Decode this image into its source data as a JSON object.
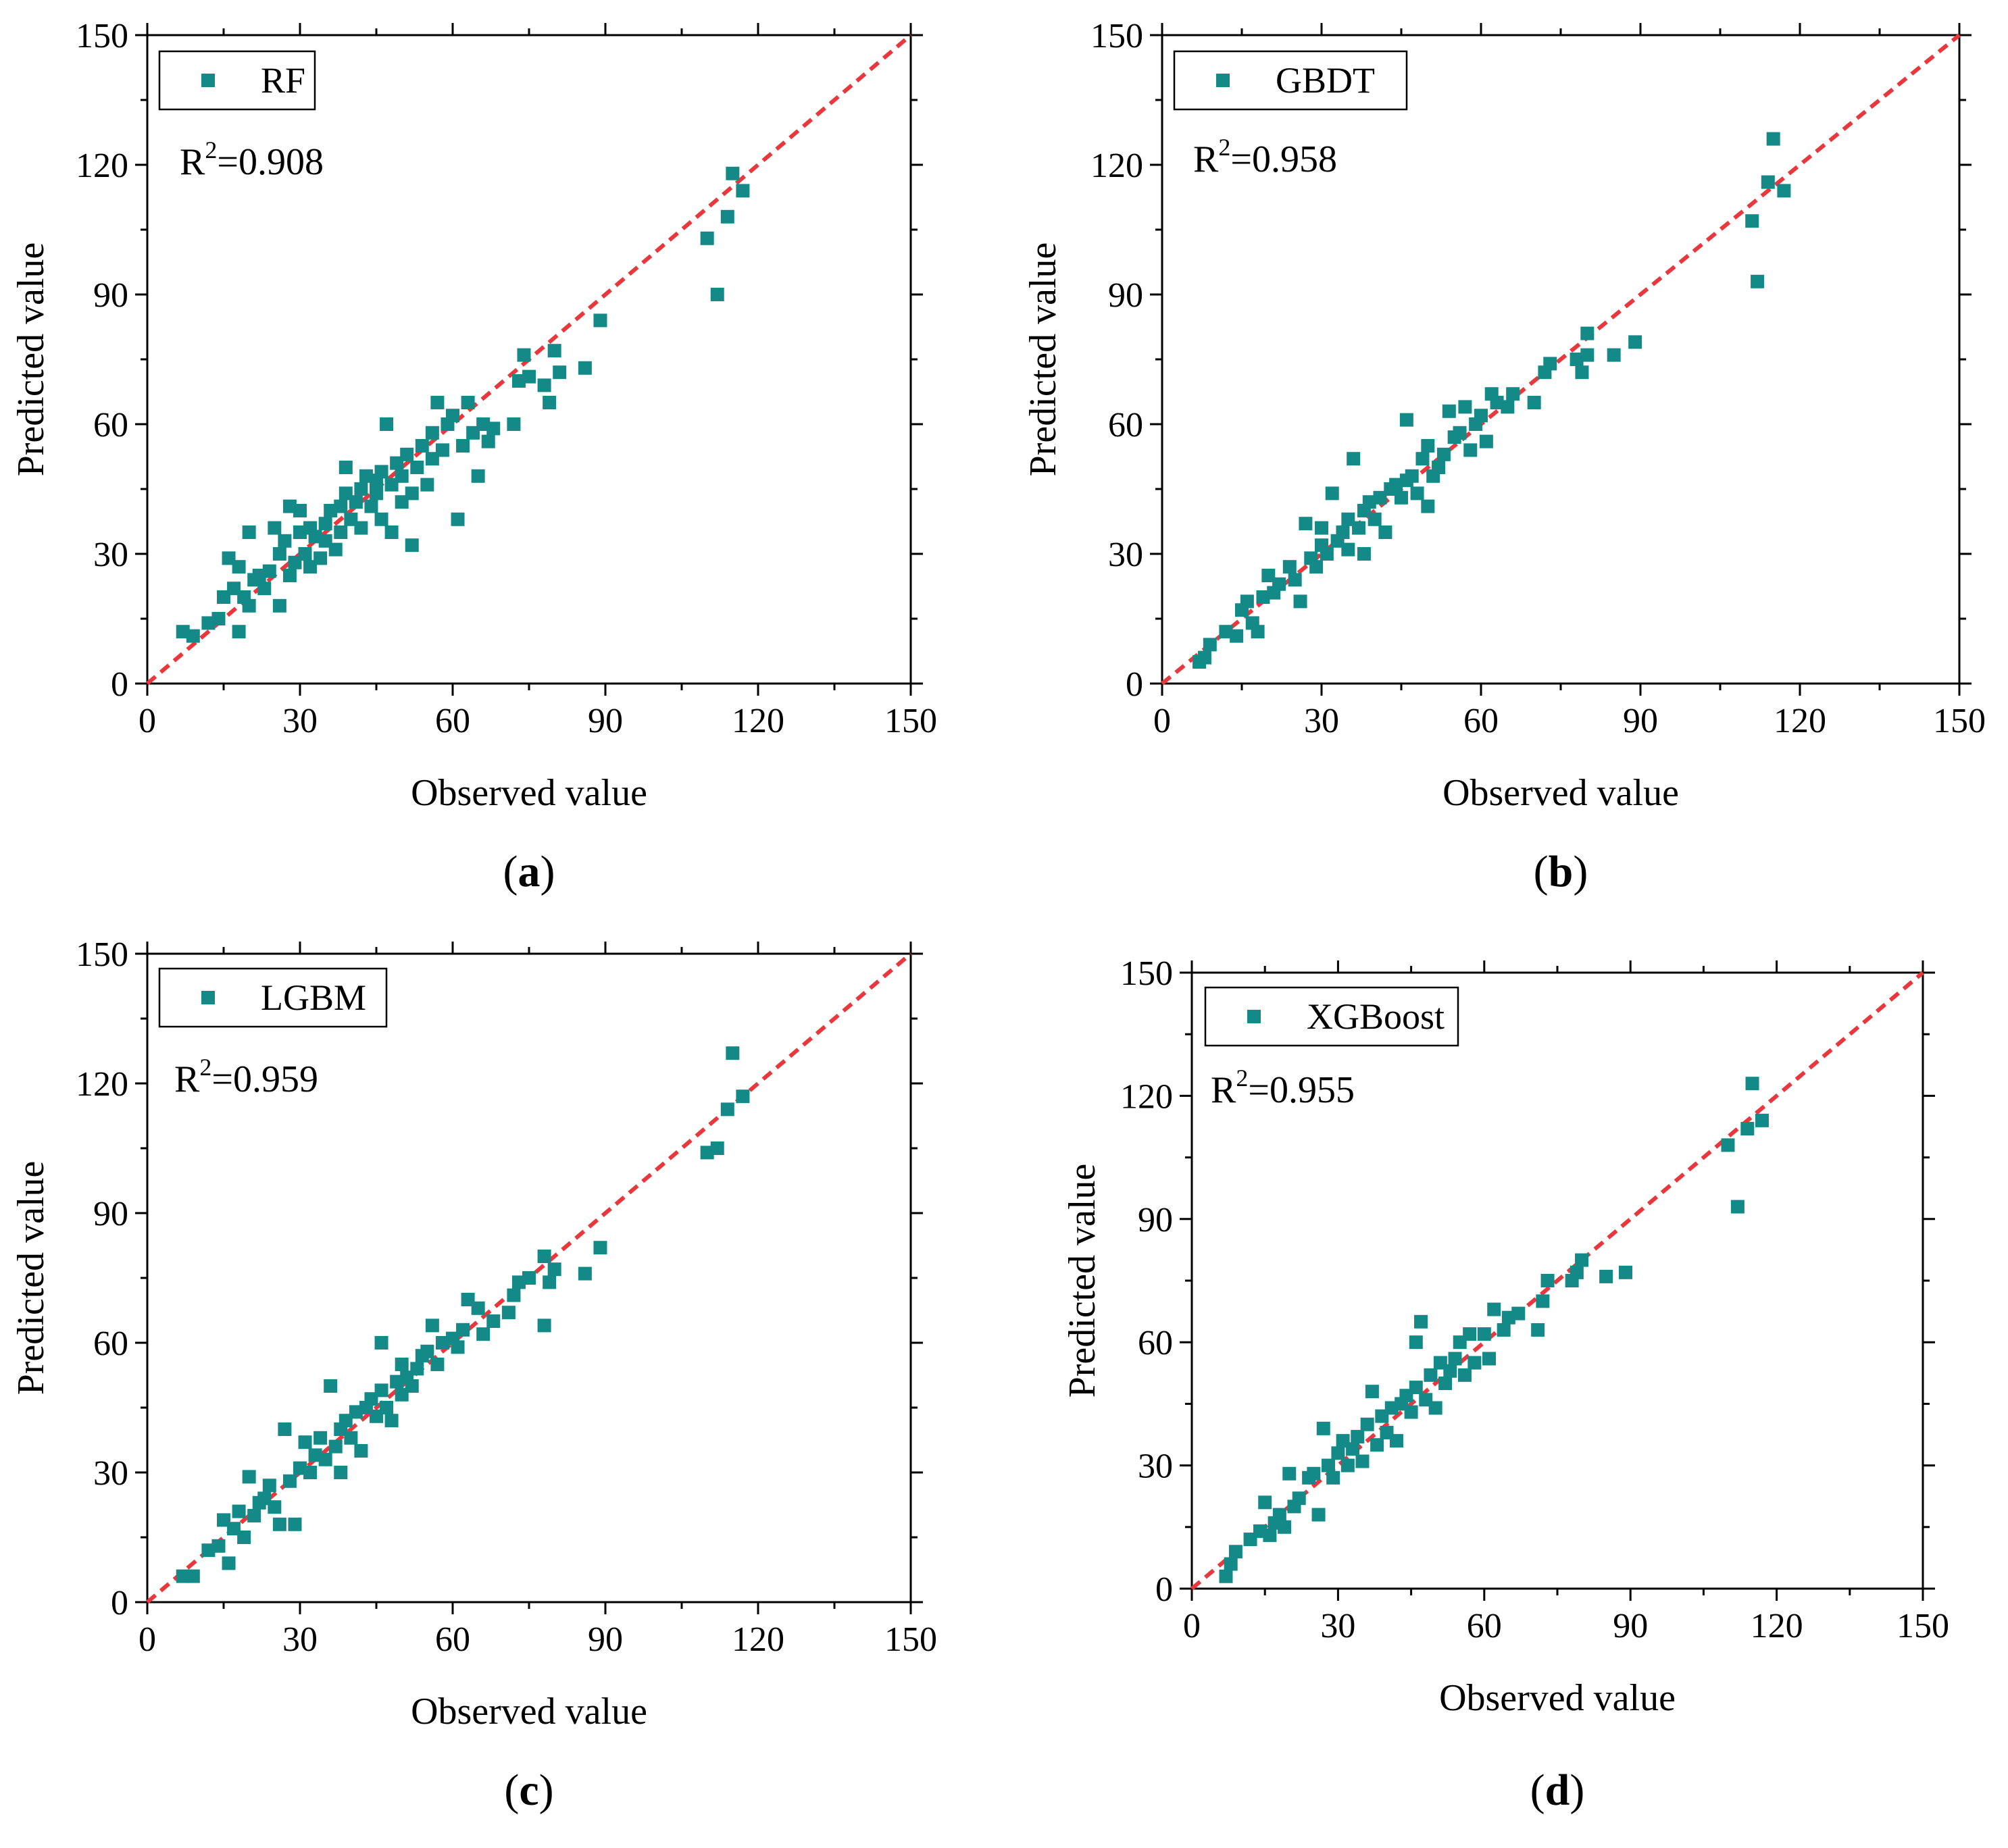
{
  "figure": {
    "colors": {
      "marker": "#138a87",
      "line": "#e8383d",
      "axis": "#000000"
    }
  },
  "chart_data": [
    {
      "type": "scatter",
      "panel_label": "(a)",
      "panel_letter": "a",
      "legend": "RF",
      "r2_prefix": "R",
      "r2_sup": "2",
      "r2_value": "=0.908",
      "xlabel": "Observed value",
      "ylabel": "Predicted value",
      "xlim": [
        0,
        150
      ],
      "ylim": [
        0,
        150
      ],
      "xticks": [
        "0",
        "30",
        "60",
        "90",
        "120",
        "150"
      ],
      "yticks": [
        "0",
        "30",
        "60",
        "90",
        "120",
        "150"
      ],
      "reference_line": "y = x",
      "points": [
        [
          7,
          12
        ],
        [
          9,
          11
        ],
        [
          12,
          14
        ],
        [
          14,
          15
        ],
        [
          15,
          20
        ],
        [
          16,
          29
        ],
        [
          17,
          22
        ],
        [
          18,
          27
        ],
        [
          18,
          12
        ],
        [
          19,
          20
        ],
        [
          20,
          35
        ],
        [
          20,
          18
        ],
        [
          21,
          24
        ],
        [
          22,
          25
        ],
        [
          23,
          22
        ],
        [
          24,
          26
        ],
        [
          25,
          36
        ],
        [
          26,
          30
        ],
        [
          26,
          18
        ],
        [
          27,
          33
        ],
        [
          28,
          25
        ],
        [
          28,
          41
        ],
        [
          29,
          28
        ],
        [
          30,
          35
        ],
        [
          30,
          40
        ],
        [
          31,
          30
        ],
        [
          32,
          36
        ],
        [
          32,
          27
        ],
        [
          33,
          34
        ],
        [
          34,
          29
        ],
        [
          35,
          33
        ],
        [
          35,
          37
        ],
        [
          36,
          40
        ],
        [
          37,
          31
        ],
        [
          38,
          35
        ],
        [
          38,
          41
        ],
        [
          39,
          50
        ],
        [
          39,
          44
        ],
        [
          40,
          38
        ],
        [
          41,
          42
        ],
        [
          42,
          36
        ],
        [
          42,
          45
        ],
        [
          43,
          48
        ],
        [
          44,
          41
        ],
        [
          45,
          44
        ],
        [
          45,
          47
        ],
        [
          46,
          49
        ],
        [
          46,
          38
        ],
        [
          47,
          60
        ],
        [
          48,
          46
        ],
        [
          48,
          35
        ],
        [
          49,
          51
        ],
        [
          50,
          48
        ],
        [
          50,
          42
        ],
        [
          51,
          53
        ],
        [
          52,
          44
        ],
        [
          52,
          32
        ],
        [
          53,
          50
        ],
        [
          54,
          55
        ],
        [
          55,
          46
        ],
        [
          56,
          58
        ],
        [
          56,
          52
        ],
        [
          57,
          65
        ],
        [
          58,
          54
        ],
        [
          59,
          60
        ],
        [
          60,
          62
        ],
        [
          61,
          38
        ],
        [
          62,
          55
        ],
        [
          63,
          65
        ],
        [
          64,
          58
        ],
        [
          65,
          48
        ],
        [
          66,
          60
        ],
        [
          67,
          56
        ],
        [
          68,
          59
        ],
        [
          72,
          60
        ],
        [
          73,
          70
        ],
        [
          74,
          76
        ],
        [
          75,
          71
        ],
        [
          78,
          69
        ],
        [
          79,
          65
        ],
        [
          80,
          77
        ],
        [
          81,
          72
        ],
        [
          86,
          73
        ],
        [
          89,
          84
        ],
        [
          110,
          103
        ],
        [
          112,
          90
        ],
        [
          114,
          108
        ],
        [
          115,
          118
        ],
        [
          117,
          114
        ]
      ]
    },
    {
      "type": "scatter",
      "panel_label": "(b)",
      "panel_letter": "b",
      "legend": "GBDT",
      "r2_prefix": "R",
      "r2_sup": "2",
      "r2_value": "=0.958",
      "xlabel": "Observed value",
      "ylabel": "Predicted value",
      "xlim": [
        0,
        150
      ],
      "ylim": [
        0,
        150
      ],
      "xticks": [
        "0",
        "30",
        "60",
        "90",
        "120",
        "150"
      ],
      "yticks": [
        "0",
        "30",
        "60",
        "90",
        "120",
        "150"
      ],
      "reference_line": "y = x",
      "points": [
        [
          7,
          5
        ],
        [
          8,
          6
        ],
        [
          9,
          9
        ],
        [
          12,
          12
        ],
        [
          14,
          11
        ],
        [
          15,
          17
        ],
        [
          16,
          19
        ],
        [
          17,
          14
        ],
        [
          18,
          12
        ],
        [
          19,
          20
        ],
        [
          20,
          25
        ],
        [
          21,
          21
        ],
        [
          22,
          23
        ],
        [
          24,
          27
        ],
        [
          25,
          24
        ],
        [
          26,
          19
        ],
        [
          27,
          37
        ],
        [
          28,
          29
        ],
        [
          29,
          27
        ],
        [
          30,
          32
        ],
        [
          30,
          36
        ],
        [
          31,
          30
        ],
        [
          32,
          44
        ],
        [
          33,
          33
        ],
        [
          34,
          35
        ],
        [
          35,
          31
        ],
        [
          35,
          38
        ],
        [
          36,
          52
        ],
        [
          37,
          36
        ],
        [
          38,
          40
        ],
        [
          38,
          30
        ],
        [
          39,
          42
        ],
        [
          40,
          38
        ],
        [
          41,
          43
        ],
        [
          42,
          35
        ],
        [
          43,
          45
        ],
        [
          44,
          46
        ],
        [
          45,
          43
        ],
        [
          46,
          47
        ],
        [
          46,
          61
        ],
        [
          47,
          48
        ],
        [
          48,
          44
        ],
        [
          49,
          52
        ],
        [
          50,
          55
        ],
        [
          50,
          41
        ],
        [
          51,
          48
        ],
        [
          52,
          50
        ],
        [
          53,
          53
        ],
        [
          54,
          63
        ],
        [
          55,
          57
        ],
        [
          56,
          58
        ],
        [
          57,
          64
        ],
        [
          58,
          54
        ],
        [
          59,
          60
        ],
        [
          60,
          62
        ],
        [
          61,
          56
        ],
        [
          62,
          67
        ],
        [
          63,
          65
        ],
        [
          65,
          64
        ],
        [
          66,
          67
        ],
        [
          70,
          65
        ],
        [
          72,
          72
        ],
        [
          73,
          74
        ],
        [
          78,
          75
        ],
        [
          79,
          72
        ],
        [
          80,
          81
        ],
        [
          80,
          76
        ],
        [
          85,
          76
        ],
        [
          89,
          79
        ],
        [
          111,
          107
        ],
        [
          112,
          93
        ],
        [
          114,
          116
        ],
        [
          115,
          126
        ],
        [
          117,
          114
        ]
      ]
    },
    {
      "type": "scatter",
      "panel_label": "(c)",
      "panel_letter": "c",
      "legend": "LGBM",
      "r2_prefix": "R",
      "r2_sup": "2",
      "r2_value": "=0.959",
      "xlabel": "Observed value",
      "ylabel": "Predicted value",
      "xlim": [
        0,
        150
      ],
      "ylim": [
        0,
        150
      ],
      "xticks": [
        "0",
        "30",
        "60",
        "90",
        "120",
        "150"
      ],
      "yticks": [
        "0",
        "30",
        "60",
        "90",
        "120",
        "150"
      ],
      "reference_line": "y = x",
      "points": [
        [
          7,
          6
        ],
        [
          9,
          6
        ],
        [
          12,
          12
        ],
        [
          14,
          13
        ],
        [
          15,
          19
        ],
        [
          16,
          9
        ],
        [
          17,
          17
        ],
        [
          18,
          21
        ],
        [
          19,
          15
        ],
        [
          20,
          29
        ],
        [
          21,
          20
        ],
        [
          22,
          23
        ],
        [
          23,
          24
        ],
        [
          24,
          27
        ],
        [
          25,
          22
        ],
        [
          26,
          18
        ],
        [
          27,
          40
        ],
        [
          28,
          28
        ],
        [
          29,
          18
        ],
        [
          30,
          31
        ],
        [
          31,
          37
        ],
        [
          32,
          30
        ],
        [
          33,
          34
        ],
        [
          34,
          38
        ],
        [
          35,
          33
        ],
        [
          36,
          50
        ],
        [
          37,
          36
        ],
        [
          38,
          30
        ],
        [
          38,
          40
        ],
        [
          39,
          42
        ],
        [
          40,
          38
        ],
        [
          41,
          44
        ],
        [
          42,
          35
        ],
        [
          43,
          45
        ],
        [
          44,
          47
        ],
        [
          45,
          43
        ],
        [
          46,
          49
        ],
        [
          46,
          60
        ],
        [
          47,
          45
        ],
        [
          48,
          42
        ],
        [
          49,
          51
        ],
        [
          50,
          48
        ],
        [
          50,
          55
        ],
        [
          51,
          52
        ],
        [
          52,
          50
        ],
        [
          53,
          54
        ],
        [
          54,
          57
        ],
        [
          55,
          58
        ],
        [
          56,
          64
        ],
        [
          57,
          55
        ],
        [
          58,
          60
        ],
        [
          60,
          61
        ],
        [
          61,
          59
        ],
        [
          62,
          63
        ],
        [
          63,
          70
        ],
        [
          65,
          68
        ],
        [
          66,
          62
        ],
        [
          68,
          65
        ],
        [
          71,
          67
        ],
        [
          72,
          71
        ],
        [
          73,
          74
        ],
        [
          75,
          75
        ],
        [
          78,
          80
        ],
        [
          78,
          64
        ],
        [
          79,
          74
        ],
        [
          80,
          77
        ],
        [
          86,
          76
        ],
        [
          89,
          82
        ],
        [
          110,
          104
        ],
        [
          112,
          105
        ],
        [
          114,
          114
        ],
        [
          115,
          127
        ],
        [
          117,
          117
        ]
      ]
    },
    {
      "type": "scatter",
      "panel_label": "(d)",
      "panel_letter": "d",
      "legend": "XGBoost",
      "r2_prefix": "R",
      "r2_sup": "2",
      "r2_value": "=0.955",
      "xlabel": "Observed value",
      "ylabel": "Predicted value",
      "xlim": [
        0,
        150
      ],
      "ylim": [
        0,
        150
      ],
      "xticks": [
        "0",
        "30",
        "60",
        "90",
        "120",
        "150"
      ],
      "yticks": [
        "0",
        "30",
        "60",
        "90",
        "120",
        "150"
      ],
      "reference_line": "y = x",
      "points": [
        [
          7,
          3
        ],
        [
          8,
          6
        ],
        [
          9,
          9
        ],
        [
          12,
          12
        ],
        [
          14,
          14
        ],
        [
          15,
          21
        ],
        [
          16,
          13
        ],
        [
          17,
          16
        ],
        [
          18,
          18
        ],
        [
          19,
          15
        ],
        [
          20,
          28
        ],
        [
          21,
          20
        ],
        [
          22,
          22
        ],
        [
          24,
          27
        ],
        [
          25,
          28
        ],
        [
          26,
          18
        ],
        [
          27,
          39
        ],
        [
          28,
          30
        ],
        [
          29,
          27
        ],
        [
          30,
          33
        ],
        [
          31,
          36
        ],
        [
          32,
          30
        ],
        [
          33,
          34
        ],
        [
          34,
          37
        ],
        [
          35,
          31
        ],
        [
          36,
          40
        ],
        [
          37,
          48
        ],
        [
          38,
          35
        ],
        [
          39,
          42
        ],
        [
          40,
          38
        ],
        [
          41,
          44
        ],
        [
          42,
          36
        ],
        [
          43,
          45
        ],
        [
          44,
          47
        ],
        [
          45,
          43
        ],
        [
          46,
          60
        ],
        [
          46,
          49
        ],
        [
          47,
          65
        ],
        [
          48,
          46
        ],
        [
          49,
          52
        ],
        [
          50,
          44
        ],
        [
          51,
          55
        ],
        [
          52,
          50
        ],
        [
          53,
          53
        ],
        [
          54,
          56
        ],
        [
          55,
          60
        ],
        [
          56,
          52
        ],
        [
          57,
          62
        ],
        [
          58,
          55
        ],
        [
          60,
          62
        ],
        [
          61,
          56
        ],
        [
          62,
          68
        ],
        [
          64,
          63
        ],
        [
          65,
          66
        ],
        [
          67,
          67
        ],
        [
          71,
          63
        ],
        [
          72,
          70
        ],
        [
          73,
          75
        ],
        [
          78,
          75
        ],
        [
          79,
          77
        ],
        [
          80,
          80
        ],
        [
          85,
          76
        ],
        [
          89,
          77
        ],
        [
          110,
          108
        ],
        [
          112,
          93
        ],
        [
          114,
          112
        ],
        [
          115,
          123
        ],
        [
          117,
          114
        ]
      ]
    }
  ]
}
